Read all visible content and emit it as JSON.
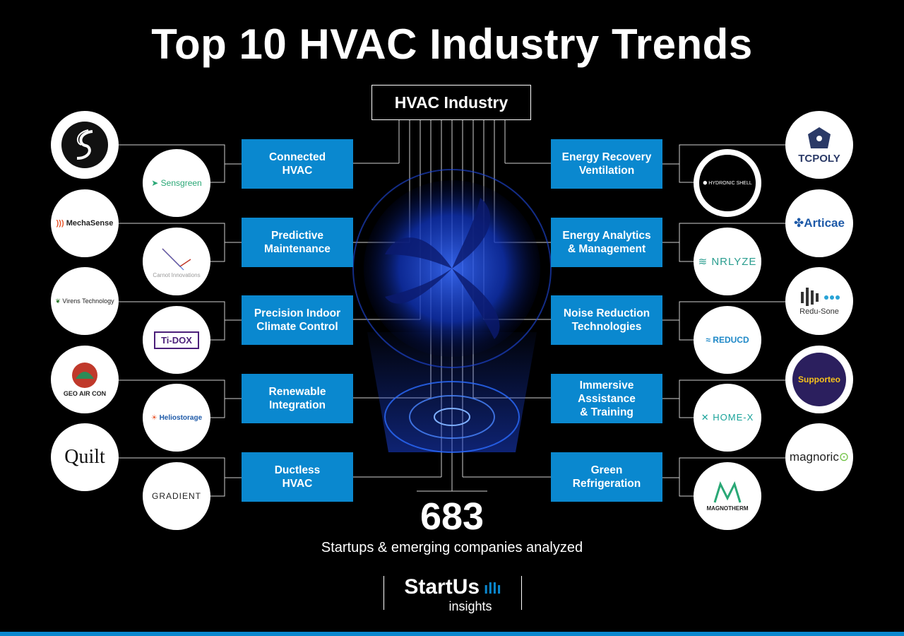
{
  "title": "Top 10 HVAC Industry Trends",
  "hub_label": "HVAC Industry",
  "trends_left": [
    {
      "label": "Connected\nHVAC"
    },
    {
      "label": "Predictive\nMaintenance"
    },
    {
      "label": "Precision Indoor\nClimate Control"
    },
    {
      "label": "Renewable\nIntegration"
    },
    {
      "label": "Ductless\nHVAC"
    }
  ],
  "trends_right": [
    {
      "label": "Energy Recovery\nVentilation"
    },
    {
      "label": "Energy Analytics\n& Management"
    },
    {
      "label": "Noise Reduction\nTechnologies"
    },
    {
      "label": "Immersive\nAssistance\n& Training"
    },
    {
      "label": "Green\nRefrigeration"
    }
  ],
  "startups_left_outer": [
    "",
    "MechaSense",
    "Virens Technology",
    "GEO AIR CON",
    "Quilt"
  ],
  "startups_left_inner": [
    "Sensgreen",
    "Carnot Innovations",
    "Ti-DOX",
    "Heliostorage",
    "GRADIENT"
  ],
  "startups_right_outer": [
    "TCPOLY",
    "Articae",
    "Redu-Sone",
    "Supporteo",
    "magnoric"
  ],
  "startups_right_inner": [
    "HYDRONIC SHELL",
    "NRLYZE",
    "REDUCD",
    "HOME-X",
    "MAGNOTHERM"
  ],
  "count": "683",
  "count_caption": "Startups & emerging companies analyzed",
  "brand": {
    "name": "StartUs",
    "sub": "insights"
  },
  "colors": {
    "accent": "#0a88cf",
    "background": "#000000"
  }
}
